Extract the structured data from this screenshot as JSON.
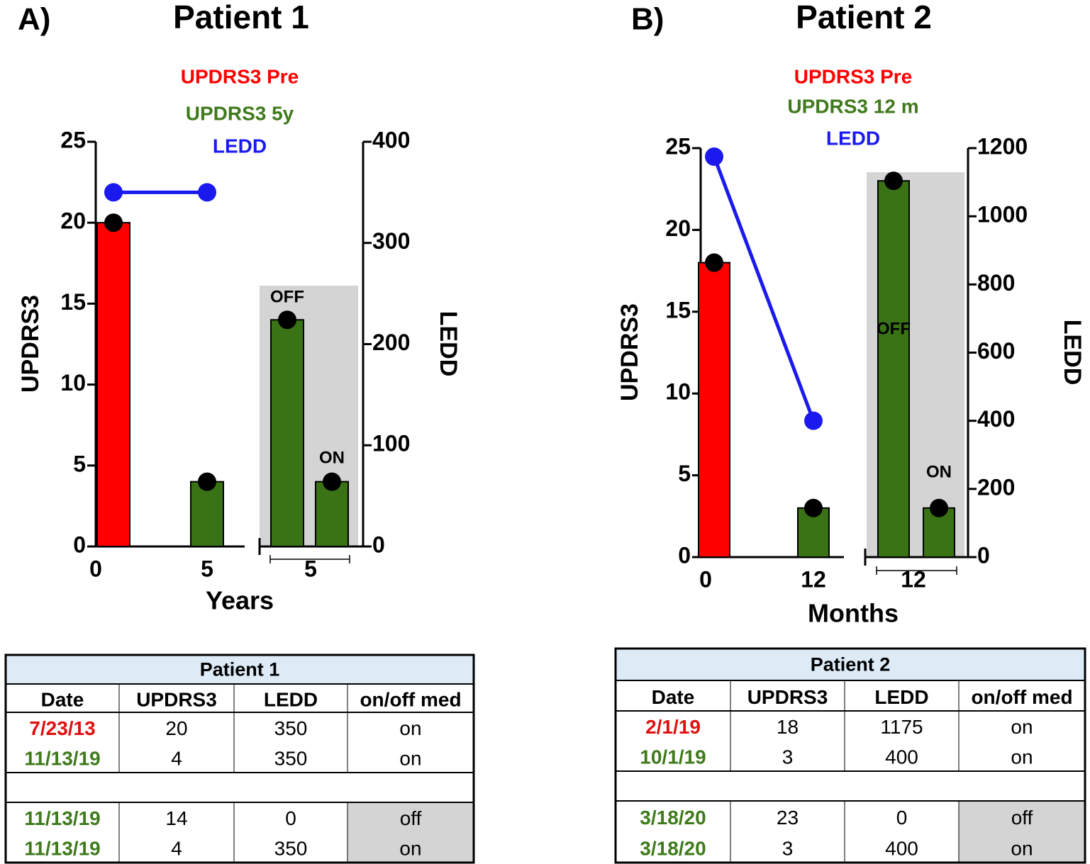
{
  "panel_labels": [
    "A)",
    "B)"
  ],
  "chart_data": [
    {
      "type": "bar",
      "title": "Patient 1",
      "x_label": "Years",
      "y_label": "UPDRS3",
      "y2_label": "LEDD",
      "categories": [
        "0",
        "5",
        "5"
      ],
      "ylim": [
        0,
        25
      ],
      "yticks": [
        0,
        5,
        10,
        15,
        20,
        25
      ],
      "y2lim": [
        0,
        400
      ],
      "y2ticks": [
        0,
        100,
        200,
        300,
        400
      ],
      "series": [
        {
          "name": "UPDRS3 Pre",
          "color": "#ff0000",
          "values": [
            20,
            null,
            null
          ]
        },
        {
          "name": "UPDRS3 5y",
          "color": "#3a7216",
          "values": [
            null,
            4,
            null
          ]
        },
        {
          "name": "OFF",
          "color": "#3a7216",
          "values": [
            null,
            null,
            14
          ]
        },
        {
          "name": "ON",
          "color": "#3a7216",
          "values": [
            null,
            null,
            4
          ]
        },
        {
          "name": "LEDD",
          "type": "line",
          "axis": "y2",
          "color": "#1a1aee",
          "values": [
            350,
            350,
            null
          ]
        }
      ]
    },
    {
      "type": "bar",
      "title": "Patient 2",
      "x_label": "Months",
      "y_label": "UPDRS3",
      "y2_label": "LEDD",
      "categories": [
        "0",
        "12",
        "12"
      ],
      "ylim": [
        0,
        25
      ],
      "yticks": [
        0,
        5,
        10,
        15,
        20,
        25
      ],
      "y2lim": [
        0,
        1200
      ],
      "y2ticks": [
        0,
        200,
        400,
        600,
        800,
        1000,
        1200
      ],
      "series": [
        {
          "name": "UPDRS3 Pre",
          "color": "#ff0000",
          "values": [
            18,
            null,
            null
          ]
        },
        {
          "name": "UPDRS3 12 m",
          "color": "#3a7216",
          "values": [
            null,
            3,
            null
          ]
        },
        {
          "name": "OFF",
          "color": "#3a7216",
          "values": [
            null,
            null,
            23
          ]
        },
        {
          "name": "ON",
          "color": "#3a7216",
          "values": [
            null,
            null,
            3
          ]
        },
        {
          "name": "LEDD",
          "type": "line",
          "axis": "y2",
          "color": "#1a1aee",
          "values": [
            1175,
            400,
            null
          ]
        }
      ]
    }
  ],
  "tables": [
    {
      "title": "Patient 1",
      "columns": [
        "Date",
        "UPDRS3",
        "LEDD",
        "on/off med"
      ],
      "groups": [
        [
          [
            "7/23/13",
            20,
            350,
            "on"
          ],
          [
            "11/13/19",
            4,
            350,
            "on"
          ]
        ],
        [
          [
            "11/13/19",
            14,
            0,
            "off"
          ],
          [
            "11/13/19",
            4,
            350,
            "on"
          ]
        ]
      ]
    },
    {
      "title": "Patient 2",
      "columns": [
        "Date",
        "UPDRS3",
        "LEDD",
        "on/off med"
      ],
      "groups": [
        [
          [
            "2/1/19",
            18,
            1175,
            "on"
          ],
          [
            "10/1/19",
            3,
            400,
            "on"
          ]
        ],
        [
          [
            "3/18/20",
            23,
            0,
            "off"
          ],
          [
            "3/18/20",
            3,
            400,
            "on"
          ]
        ]
      ]
    }
  ]
}
